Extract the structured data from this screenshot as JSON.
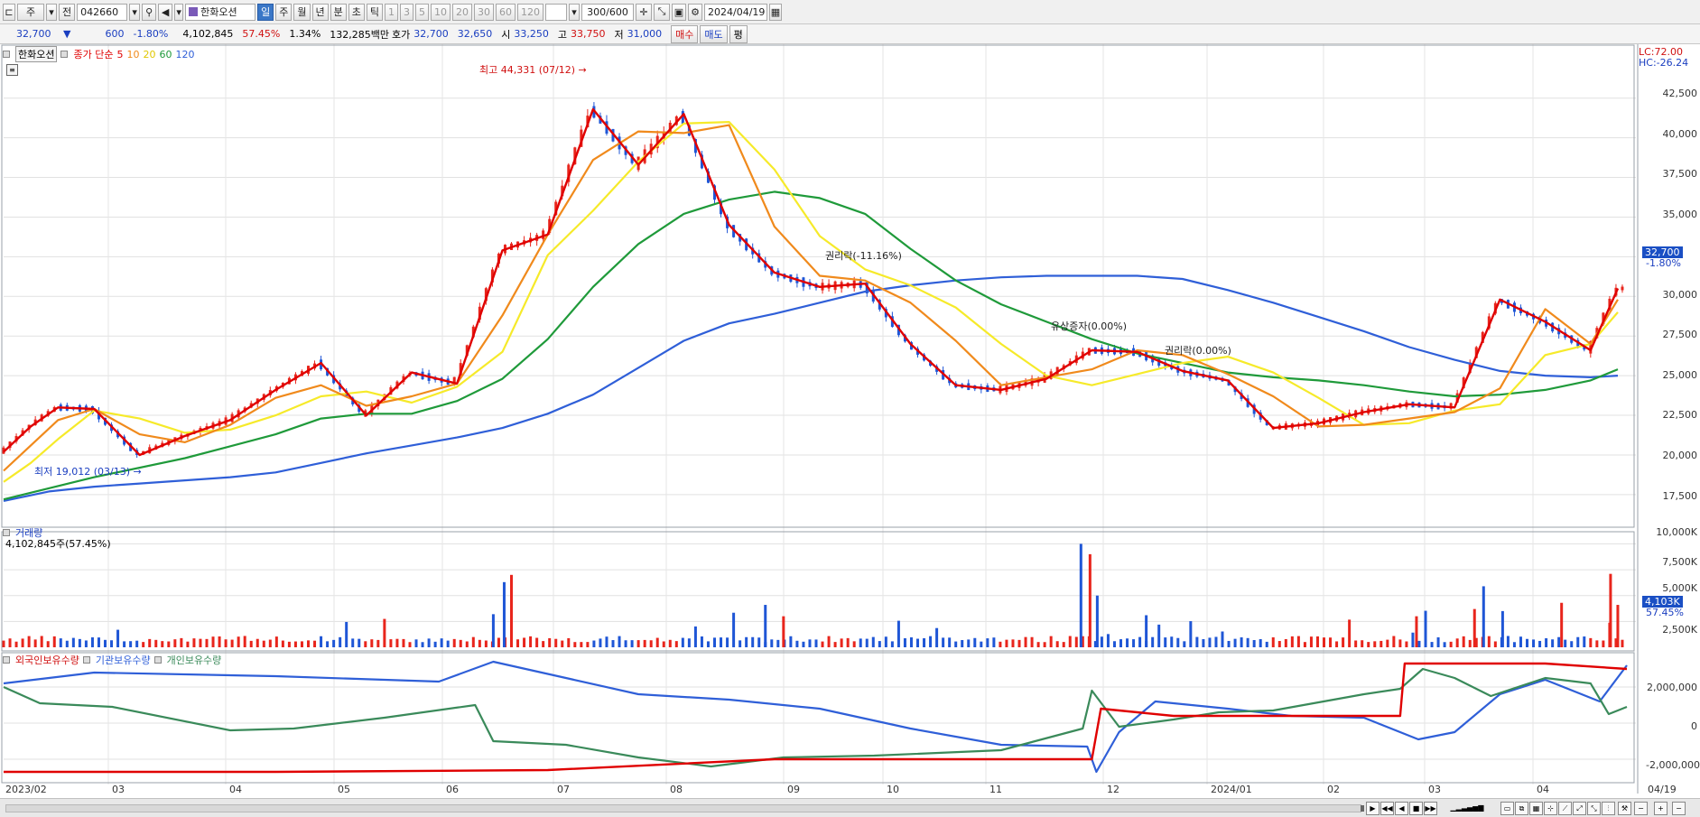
{
  "toolbar": {
    "market": "주",
    "tab_big": "전",
    "code": "042660",
    "stock_name": "한화오션",
    "periods": [
      "일",
      "주",
      "월",
      "년",
      "분",
      "초",
      "틱"
    ],
    "minute_steps": [
      "1",
      "3",
      "5",
      "10",
      "20",
      "30",
      "60",
      "120"
    ],
    "count": "300/600",
    "date": "2024/04/19"
  },
  "info": {
    "price": "32,700",
    "change": "600",
    "change_pct": "-1.80%",
    "volume": "4,102,845",
    "volume_pct": "57.45%",
    "turnover_pct": "1.34%",
    "amount": "132,285백만",
    "quote_label": "호가",
    "ask": "32,700",
    "bid": "32,650",
    "open_label": "시",
    "open": "33,250",
    "high_label": "고",
    "high": "33,750",
    "low_label": "저",
    "low": "31,000",
    "buy_btn": "매수",
    "sell_btn": "매도",
    "eval_btn": "평"
  },
  "price_panel": {
    "name_tag": "한화오션",
    "ma_title": "종가 단순",
    "ma_periods": [
      "5",
      "10",
      "20",
      "60",
      "120"
    ],
    "lc": "LC:72.00",
    "hc": "HC:-26.24",
    "max_label": "최고 44,331 (07/12)",
    "min_label": "최저 19,012 (03/13)",
    "event1": "권리락(-11.16%)",
    "event2": "유상증자(0.00%)",
    "event3": "권리락(0.00%)",
    "last_price": "32,700",
    "last_pct": "-1.80%",
    "yaxis": [
      "42,500",
      "40,000",
      "37,500",
      "35,000",
      "32,500",
      "30,000",
      "27,500",
      "25,000",
      "22,500",
      "20,000",
      "17,500"
    ]
  },
  "volume_panel": {
    "title": "거래량",
    "subtitle": "4,102,845주(57.45%)",
    "last": "4,103K",
    "last_pct": "57.45%",
    "yaxis": [
      "10,000K",
      "7,500K",
      "5,000K",
      "2,500K"
    ]
  },
  "holdings_panel": {
    "legend": [
      "외국인보유수량",
      "기관보유수량",
      "개인보유수량"
    ],
    "yaxis": [
      "2,000,000",
      "0",
      "-2,000,000"
    ]
  },
  "xaxis": [
    "2023/02",
    "03",
    "04",
    "05",
    "06",
    "07",
    "08",
    "09",
    "10",
    "11",
    "12",
    "2024/01",
    "02",
    "03",
    "04",
    "04/19"
  ],
  "colors": {
    "up": "#e8251c",
    "down": "#1f56d6",
    "ma5": "#e00000",
    "ma10": "#f08a1c",
    "ma20": "#f6ea2a",
    "ma60": "#1f9a3a",
    "ma120": "#2f5fd8",
    "foreign": "#e00000",
    "institution": "#2f5fd8",
    "individual": "#3a8a5a"
  },
  "chart_data": {
    "type": "candlestick",
    "ma": {
      "ma120": [
        [
          0,
          17100
        ],
        [
          50,
          17700
        ],
        [
          100,
          18000
        ],
        [
          150,
          18200
        ],
        [
          200,
          18400
        ],
        [
          250,
          18600
        ],
        [
          300,
          18900
        ],
        [
          350,
          19500
        ],
        [
          400,
          20100
        ],
        [
          450,
          20600
        ],
        [
          500,
          21100
        ],
        [
          550,
          21700
        ],
        [
          600,
          22600
        ],
        [
          650,
          23800
        ],
        [
          700,
          25500
        ],
        [
          750,
          27200
        ],
        [
          800,
          28300
        ],
        [
          850,
          28900
        ],
        [
          900,
          29600
        ],
        [
          950,
          30300
        ],
        [
          1000,
          30700
        ],
        [
          1050,
          31000
        ],
        [
          1100,
          31200
        ],
        [
          1150,
          31300
        ],
        [
          1200,
          31300
        ],
        [
          1250,
          31300
        ],
        [
          1300,
          31100
        ],
        [
          1350,
          30400
        ],
        [
          1400,
          29600
        ],
        [
          1450,
          28700
        ],
        [
          1500,
          27800
        ],
        [
          1550,
          26800
        ],
        [
          1600,
          26000
        ],
        [
          1650,
          25300
        ],
        [
          1700,
          25000
        ],
        [
          1750,
          24900
        ],
        [
          1780,
          25000
        ]
      ],
      "ma60": [
        [
          0,
          17200
        ],
        [
          100,
          18600
        ],
        [
          200,
          19800
        ],
        [
          300,
          21300
        ],
        [
          350,
          22300
        ],
        [
          400,
          22600
        ],
        [
          450,
          22600
        ],
        [
          500,
          23400
        ],
        [
          550,
          24800
        ],
        [
          600,
          27300
        ],
        [
          650,
          30600
        ],
        [
          700,
          33300
        ],
        [
          750,
          35200
        ],
        [
          800,
          36100
        ],
        [
          850,
          36600
        ],
        [
          900,
          36200
        ],
        [
          950,
          35200
        ],
        [
          1000,
          33000
        ],
        [
          1050,
          31000
        ],
        [
          1100,
          29500
        ],
        [
          1150,
          28400
        ],
        [
          1200,
          27300
        ],
        [
          1250,
          26400
        ],
        [
          1300,
          25800
        ],
        [
          1350,
          25200
        ],
        [
          1400,
          24900
        ],
        [
          1450,
          24700
        ],
        [
          1500,
          24400
        ],
        [
          1550,
          24000
        ],
        [
          1600,
          23700
        ],
        [
          1650,
          23800
        ],
        [
          1700,
          24100
        ],
        [
          1750,
          24700
        ],
        [
          1780,
          25400
        ]
      ],
      "ma20": [
        [
          0,
          18300
        ],
        [
          30,
          19500
        ],
        [
          60,
          21000
        ],
        [
          100,
          22800
        ],
        [
          150,
          22300
        ],
        [
          200,
          21400
        ],
        [
          250,
          21600
        ],
        [
          300,
          22500
        ],
        [
          350,
          23700
        ],
        [
          400,
          24000
        ],
        [
          450,
          23300
        ],
        [
          500,
          24300
        ],
        [
          550,
          26500
        ],
        [
          600,
          32600
        ],
        [
          650,
          35400
        ],
        [
          700,
          38500
        ],
        [
          750,
          40900
        ],
        [
          800,
          41000
        ],
        [
          850,
          38000
        ],
        [
          900,
          33800
        ],
        [
          950,
          31700
        ],
        [
          1000,
          30700
        ],
        [
          1050,
          29300
        ],
        [
          1100,
          27000
        ],
        [
          1150,
          25000
        ],
        [
          1200,
          24400
        ],
        [
          1250,
          25100
        ],
        [
          1300,
          25800
        ],
        [
          1350,
          26200
        ],
        [
          1400,
          25200
        ],
        [
          1450,
          23600
        ],
        [
          1500,
          21900
        ],
        [
          1550,
          22000
        ],
        [
          1600,
          22800
        ],
        [
          1650,
          23200
        ],
        [
          1700,
          26300
        ],
        [
          1750,
          27000
        ],
        [
          1780,
          29000
        ]
      ],
      "ma10": [
        [
          0,
          19000
        ],
        [
          30,
          20600
        ],
        [
          60,
          22200
        ],
        [
          100,
          22900
        ],
        [
          150,
          21300
        ],
        [
          200,
          20800
        ],
        [
          250,
          21900
        ],
        [
          300,
          23600
        ],
        [
          350,
          24400
        ],
        [
          400,
          23100
        ],
        [
          450,
          23700
        ],
        [
          500,
          24500
        ],
        [
          550,
          28800
        ],
        [
          600,
          33900
        ],
        [
          650,
          38600
        ],
        [
          700,
          40400
        ],
        [
          750,
          40300
        ],
        [
          800,
          40800
        ],
        [
          850,
          34400
        ],
        [
          900,
          31300
        ],
        [
          950,
          31000
        ],
        [
          1000,
          29600
        ],
        [
          1050,
          27200
        ],
        [
          1100,
          24400
        ],
        [
          1150,
          24900
        ],
        [
          1200,
          25400
        ],
        [
          1250,
          26600
        ],
        [
          1300,
          26300
        ],
        [
          1350,
          25100
        ],
        [
          1400,
          23700
        ],
        [
          1450,
          21800
        ],
        [
          1500,
          21900
        ],
        [
          1550,
          22300
        ],
        [
          1600,
          22700
        ],
        [
          1650,
          24200
        ],
        [
          1700,
          29200
        ],
        [
          1750,
          27000
        ],
        [
          1780,
          29800
        ]
      ],
      "ma5": [
        [
          0,
          20200
        ],
        [
          30,
          21800
        ],
        [
          60,
          23000
        ],
        [
          100,
          22900
        ],
        [
          150,
          20000
        ],
        [
          200,
          21200
        ],
        [
          250,
          22200
        ],
        [
          300,
          24100
        ],
        [
          350,
          25800
        ],
        [
          400,
          22500
        ],
        [
          450,
          25200
        ],
        [
          500,
          24500
        ],
        [
          550,
          32900
        ],
        [
          600,
          33900
        ],
        [
          650,
          41800
        ],
        [
          700,
          38300
        ],
        [
          750,
          41500
        ],
        [
          800,
          34500
        ],
        [
          850,
          31500
        ],
        [
          900,
          30600
        ],
        [
          950,
          30800
        ],
        [
          1000,
          27000
        ],
        [
          1050,
          24400
        ],
        [
          1100,
          24100
        ],
        [
          1150,
          24800
        ],
        [
          1200,
          26600
        ],
        [
          1250,
          26500
        ],
        [
          1300,
          25300
        ],
        [
          1350,
          24700
        ],
        [
          1400,
          21700
        ],
        [
          1450,
          22000
        ],
        [
          1500,
          22700
        ],
        [
          1550,
          23200
        ],
        [
          1600,
          23000
        ],
        [
          1650,
          29800
        ],
        [
          1700,
          28400
        ],
        [
          1750,
          26600
        ],
        [
          1780,
          30500
        ]
      ]
    },
    "holdings": {
      "foreign": [
        [
          0,
          -2700000
        ],
        [
          300,
          -2700000
        ],
        [
          600,
          -2600000
        ],
        [
          850,
          -2000000
        ],
        [
          1200,
          -2000000
        ],
        [
          1210,
          800000
        ],
        [
          1290,
          400000
        ],
        [
          1540,
          400000
        ],
        [
          1545,
          3300000
        ],
        [
          1700,
          3300000
        ],
        [
          1790,
          3000000
        ]
      ],
      "institution": [
        [
          0,
          2200000
        ],
        [
          100,
          2800000
        ],
        [
          300,
          2600000
        ],
        [
          480,
          2300000
        ],
        [
          540,
          3400000
        ],
        [
          620,
          2500000
        ],
        [
          700,
          1600000
        ],
        [
          800,
          1300000
        ],
        [
          900,
          800000
        ],
        [
          1000,
          -300000
        ],
        [
          1100,
          -1200000
        ],
        [
          1195,
          -1300000
        ],
        [
          1205,
          -2700000
        ],
        [
          1230,
          -500000
        ],
        [
          1270,
          1200000
        ],
        [
          1350,
          800000
        ],
        [
          1420,
          400000
        ],
        [
          1500,
          300000
        ],
        [
          1560,
          -900000
        ],
        [
          1600,
          -500000
        ],
        [
          1650,
          1600000
        ],
        [
          1700,
          2400000
        ],
        [
          1760,
          1200000
        ],
        [
          1790,
          3200000
        ]
      ],
      "individual": [
        [
          0,
          2000000
        ],
        [
          40,
          1100000
        ],
        [
          120,
          900000
        ],
        [
          250,
          -400000
        ],
        [
          320,
          -300000
        ],
        [
          420,
          300000
        ],
        [
          520,
          1000000
        ],
        [
          540,
          -1000000
        ],
        [
          620,
          -1200000
        ],
        [
          700,
          -1900000
        ],
        [
          780,
          -2400000
        ],
        [
          860,
          -1900000
        ],
        [
          960,
          -1800000
        ],
        [
          1100,
          -1500000
        ],
        [
          1190,
          -300000
        ],
        [
          1200,
          1800000
        ],
        [
          1230,
          -200000
        ],
        [
          1290,
          200000
        ],
        [
          1340,
          600000
        ],
        [
          1400,
          700000
        ],
        [
          1500,
          1600000
        ],
        [
          1540,
          1900000
        ],
        [
          1565,
          3000000
        ],
        [
          1600,
          2500000
        ],
        [
          1640,
          1500000
        ],
        [
          1700,
          2500000
        ],
        [
          1750,
          2200000
        ],
        [
          1770,
          500000
        ],
        [
          1790,
          900000
        ]
      ]
    }
  }
}
